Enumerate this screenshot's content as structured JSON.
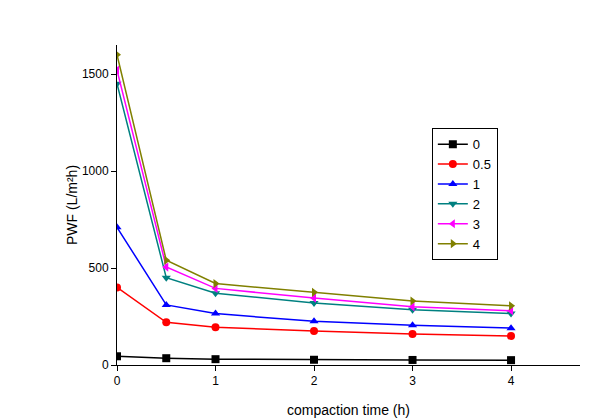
{
  "chart_data": {
    "type": "line",
    "x_label": "compaction time (h)",
    "y_label": "PWF (L/m²h)",
    "x": [
      0,
      0.5,
      1,
      2,
      3,
      4
    ],
    "xlim": [
      0,
      4.7
    ],
    "xticks": [
      0,
      1,
      2,
      3,
      4
    ],
    "ylim": [
      0,
      1650
    ],
    "yticks": [
      0,
      500,
      1000,
      1500
    ],
    "grid": false,
    "legend": "upper right",
    "series": [
      {
        "name": "0",
        "color": "#000000",
        "marker": "square",
        "values": [
          45,
          35,
          30,
          27,
          26,
          25
        ]
      },
      {
        "name": "0.5",
        "color": "#ff0000",
        "marker": "circle",
        "values": [
          400,
          220,
          195,
          175,
          160,
          150
        ]
      },
      {
        "name": "1",
        "color": "#0000ff",
        "marker": "triangle-up",
        "values": [
          710,
          310,
          265,
          225,
          205,
          190
        ]
      },
      {
        "name": "2",
        "color": "#008080",
        "marker": "triangle-down",
        "values": [
          1450,
          450,
          370,
          320,
          285,
          265
        ]
      },
      {
        "name": "3",
        "color": "#ff00ff",
        "marker": "triangle-left",
        "values": [
          1520,
          505,
          395,
          345,
          300,
          280
        ]
      },
      {
        "name": "4",
        "color": "#808000",
        "marker": "triangle-right",
        "values": [
          1600,
          540,
          420,
          375,
          330,
          305
        ]
      }
    ]
  }
}
